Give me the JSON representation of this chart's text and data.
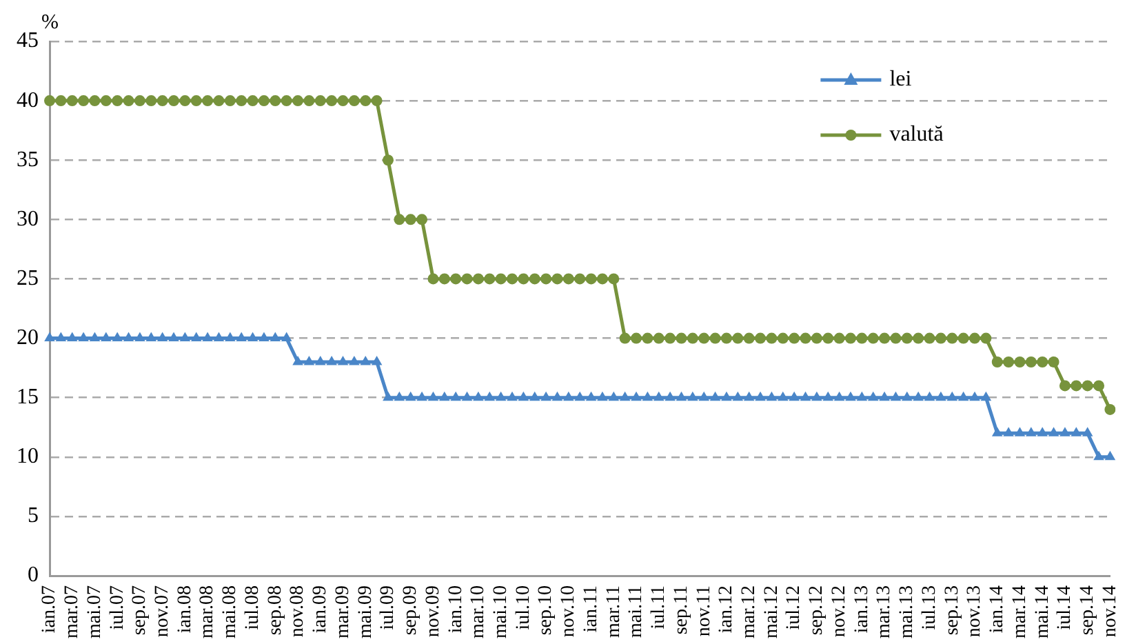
{
  "chart_data": {
    "type": "line",
    "ylabel": "%",
    "categories": [
      "ian.07",
      null,
      "mar.07",
      null,
      "mai.07",
      null,
      "iul.07",
      null,
      "sep.07",
      null,
      "nov.07",
      null,
      "ian.08",
      null,
      "mar.08",
      null,
      "mai.08",
      null,
      "iul.08",
      null,
      "sep.08",
      null,
      "nov.08",
      null,
      "ian.09",
      null,
      "mar.09",
      null,
      "mai.09",
      null,
      "iul.09",
      null,
      "sep.09",
      null,
      "nov.09",
      null,
      "ian.10",
      null,
      "mar.10",
      null,
      "mai.10",
      null,
      "iul.10",
      null,
      "sep.10",
      null,
      "nov.10",
      null,
      "ian.11",
      null,
      "mar.11",
      null,
      "mai.11",
      null,
      "iul.11",
      null,
      "sep.11",
      null,
      "nov.11",
      null,
      "ian.12",
      null,
      "mar.12",
      null,
      "mai.12",
      null,
      "iul.12",
      null,
      "sep.12",
      null,
      "nov.12",
      null,
      "ian.13",
      null,
      "mar.13",
      null,
      "mai.13",
      null,
      "iul.13",
      null,
      "sep.13",
      null,
      "nov.13",
      null,
      "ian.14",
      null,
      "mar.14",
      null,
      "mai.14",
      null,
      "iul.14",
      null,
      "sep.14",
      null,
      "nov.14"
    ],
    "series": [
      {
        "name": "lei",
        "color": "#4a86c8",
        "marker": "triangle",
        "values": [
          20,
          20,
          20,
          20,
          20,
          20,
          20,
          20,
          20,
          20,
          20,
          20,
          20,
          20,
          20,
          20,
          20,
          20,
          20,
          20,
          20,
          20,
          18,
          18,
          18,
          18,
          18,
          18,
          18,
          18,
          15,
          15,
          15,
          15,
          15,
          15,
          15,
          15,
          15,
          15,
          15,
          15,
          15,
          15,
          15,
          15,
          15,
          15,
          15,
          15,
          15,
          15,
          15,
          15,
          15,
          15,
          15,
          15,
          15,
          15,
          15,
          15,
          15,
          15,
          15,
          15,
          15,
          15,
          15,
          15,
          15,
          15,
          15,
          15,
          15,
          15,
          15,
          15,
          15,
          15,
          15,
          15,
          15,
          15,
          12,
          12,
          12,
          12,
          12,
          12,
          12,
          12,
          12,
          10,
          10
        ]
      },
      {
        "name": "valută",
        "color": "#77933c",
        "marker": "circle",
        "values": [
          40,
          40,
          40,
          40,
          40,
          40,
          40,
          40,
          40,
          40,
          40,
          40,
          40,
          40,
          40,
          40,
          40,
          40,
          40,
          40,
          40,
          40,
          40,
          40,
          40,
          40,
          40,
          40,
          40,
          40,
          35,
          30,
          30,
          30,
          25,
          25,
          25,
          25,
          25,
          25,
          25,
          25,
          25,
          25,
          25,
          25,
          25,
          25,
          25,
          25,
          25,
          20,
          20,
          20,
          20,
          20,
          20,
          20,
          20,
          20,
          20,
          20,
          20,
          20,
          20,
          20,
          20,
          20,
          20,
          20,
          20,
          20,
          20,
          20,
          20,
          20,
          20,
          20,
          20,
          20,
          20,
          20,
          20,
          20,
          18,
          18,
          18,
          18,
          18,
          18,
          16,
          16,
          16,
          16,
          14
        ]
      }
    ],
    "ylim": [
      0,
      45
    ],
    "yticks": [
      0,
      5,
      10,
      15,
      20,
      25,
      30,
      35,
      40,
      45
    ],
    "grid": "y",
    "legend": "top right"
  }
}
